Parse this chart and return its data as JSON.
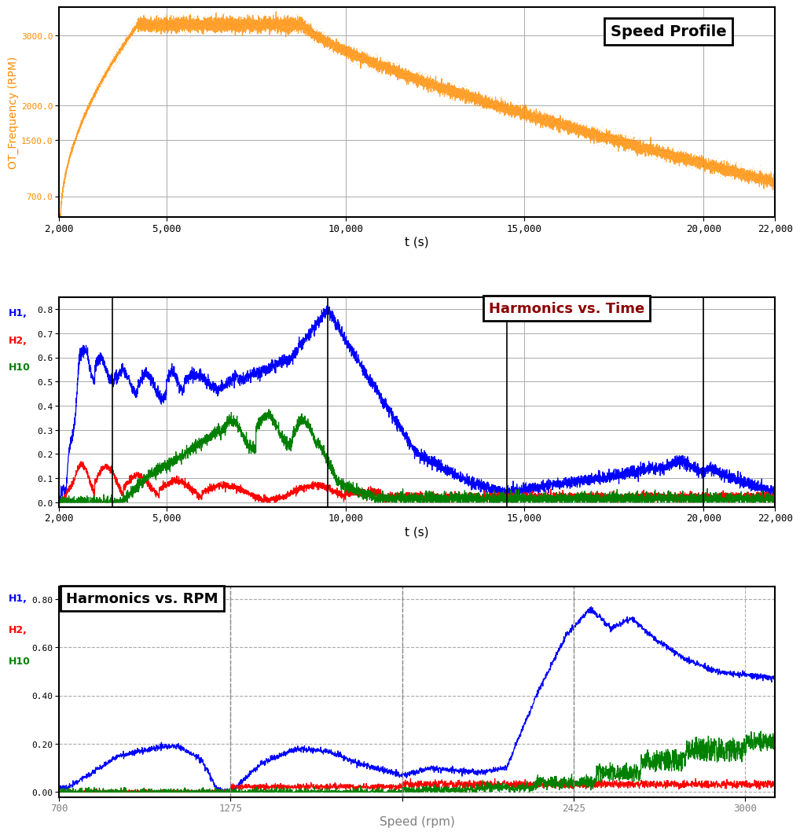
{
  "speed_profile": {
    "title": "Speed Profile",
    "xlabel": "t (s)",
    "ylabel": "OT_Frequency (RPM)",
    "yticks": [
      700.0,
      1500.0,
      2000.0,
      3000.0
    ],
    "xticks": [
      2000,
      5000,
      10000,
      15000,
      20000,
      22000
    ],
    "color": "#FF8C00",
    "ylim": [
      400,
      3400
    ],
    "xlim": [
      2000,
      22000
    ],
    "bg_color": "#ffffff"
  },
  "harmonics_time": {
    "title": "Harmonics vs. Time",
    "xlabel": "t (s)",
    "yticks": [
      0.0,
      0.1,
      0.2,
      0.3,
      0.4,
      0.5,
      0.6,
      0.7,
      0.8
    ],
    "xticks": [
      2000,
      5000,
      10000,
      15000,
      20000,
      22000
    ],
    "ylim": [
      -0.02,
      0.85
    ],
    "xlim": [
      2000,
      22000
    ],
    "vlines": [
      3500,
      9500,
      14500,
      20000
    ],
    "bg_color": "#ffffff"
  },
  "harmonics_rpm": {
    "title": "Harmonics vs. RPM",
    "xlabel": "Speed (rpm)",
    "yticks": [
      0.0,
      0.2,
      0.4,
      0.6,
      0.8
    ],
    "xticks": [
      700,
      1275,
      1850,
      2425,
      3000
    ],
    "xtick_labels": [
      "700",
      "1275",
      "",
      "2425",
      "3000"
    ],
    "ylim": [
      -0.02,
      0.85
    ],
    "xlim": [
      700,
      3100
    ],
    "vlines": [
      1275,
      1850,
      2425
    ],
    "bg_color": "#ffffff"
  },
  "label_color_ot": "#FF8C00",
  "tick_bg": "#c8c8c8"
}
